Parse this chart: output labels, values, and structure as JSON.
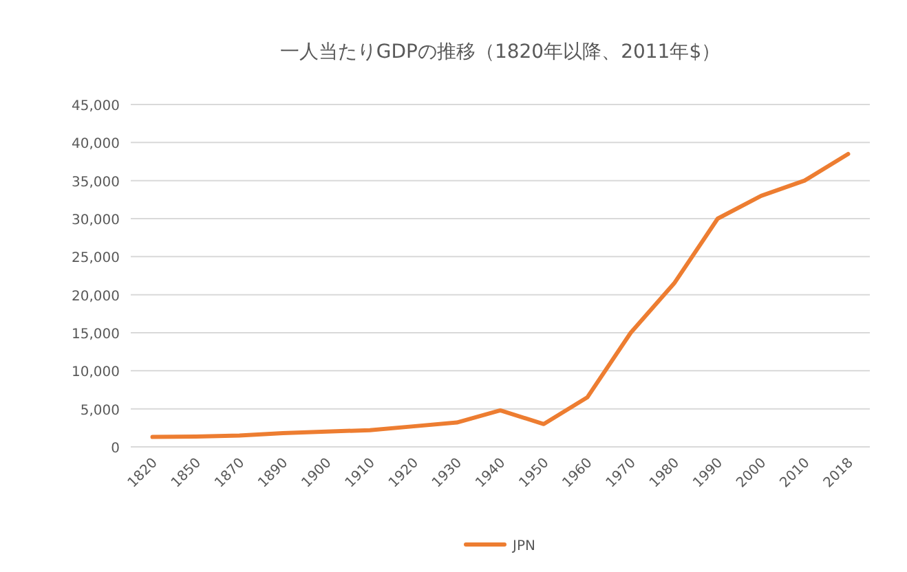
{
  "chart_data": {
    "type": "line",
    "title": "一人当たりGDPの推移（1820年以降、2011年$）",
    "categories": [
      "1820",
      "1850",
      "1870",
      "1890",
      "1900",
      "1910",
      "1920",
      "1930",
      "1940",
      "1950",
      "1960",
      "1970",
      "1980",
      "1990",
      "2000",
      "2010",
      "2018"
    ],
    "series": [
      {
        "name": "JPN",
        "color": "#ed7d31",
        "values": [
          1300,
          1350,
          1500,
          1800,
          2000,
          2200,
          2700,
          3200,
          4800,
          3000,
          6500,
          15000,
          21500,
          30000,
          33000,
          35000,
          38500
        ]
      }
    ],
    "ylim": [
      0,
      45000
    ],
    "yticks": [
      {
        "value": 0,
        "label": "0"
      },
      {
        "value": 5000,
        "label": "5,000"
      },
      {
        "value": 10000,
        "label": "10,000"
      },
      {
        "value": 15000,
        "label": "15,000"
      },
      {
        "value": 20000,
        "label": "20,000"
      },
      {
        "value": 25000,
        "label": "25,000"
      },
      {
        "value": 30000,
        "label": "30,000"
      },
      {
        "value": 35000,
        "label": "35,000"
      },
      {
        "value": 40000,
        "label": "40,000"
      },
      {
        "value": 45000,
        "label": "45,000"
      }
    ],
    "grid": "y",
    "legend": "bottom",
    "marker": "none",
    "line_style": "solid"
  }
}
